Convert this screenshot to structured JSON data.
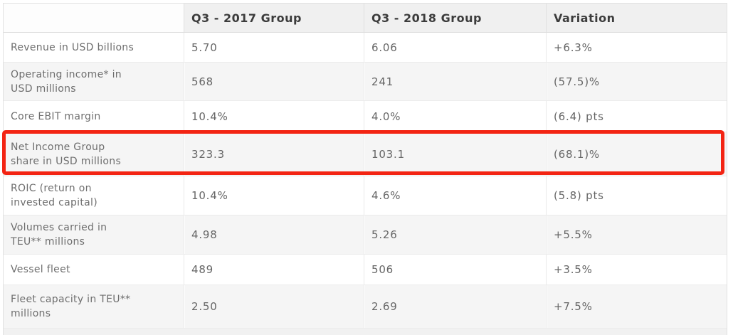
{
  "table": {
    "columns": [
      "",
      "Q3 - 2017 Group",
      "Q3 - 2018 Group",
      "Variation"
    ],
    "rows": [
      {
        "label": "Revenue in USD billions",
        "label_lines": [
          "Revenue in USD billions"
        ],
        "values": [
          "5.70",
          "6.06",
          "+6.3%"
        ]
      },
      {
        "label": "Operating income* in USD millions",
        "label_lines": [
          "Operating income* in",
          "USD millions"
        ],
        "values": [
          "568",
          "241",
          "(57.5)%"
        ]
      },
      {
        "label": "Core EBIT margin",
        "label_lines": [
          "Core EBIT margin"
        ],
        "values": [
          "10.4%",
          "4.0%",
          "(6.4) pts"
        ]
      },
      {
        "label": "Net Income Group share in USD millions",
        "label_lines": [
          "Net Income Group",
          "share in USD millions"
        ],
        "values": [
          "323.3",
          "103.1",
          "(68.1)%"
        ],
        "highlighted": true
      },
      {
        "label": "ROIC (return on invested capital)",
        "label_lines": [
          "ROIC (return on",
          "invested capital)"
        ],
        "values": [
          "10.4%",
          "4.6%",
          "(5.8) pts"
        ]
      },
      {
        "label": "Volumes carried in TEU** millions",
        "label_lines": [
          "Volumes carried in",
          "TEU** millions"
        ],
        "values": [
          "4.98",
          "5.26",
          "+5.5%"
        ]
      },
      {
        "label": "Vessel fleet",
        "label_lines": [
          "Vessel fleet"
        ],
        "values": [
          "489",
          "506",
          "+3.5%"
        ]
      },
      {
        "label": "Fleet capacity in TEU** millions",
        "label_lines": [
          "Fleet capacity in TEU**",
          "millions"
        ],
        "values": [
          "2.50",
          "2.69",
          "+7.5%"
        ]
      }
    ]
  },
  "highlight": {
    "target_row_label": "Net Income Group share in USD millions"
  },
  "colors": {
    "highlight_red": "#f32413",
    "header_bg": "#f0f0f0",
    "shaded_row_bg": "#f5f5f5",
    "header_text": "#3c3c3c",
    "body_text": "#6e6e6e",
    "border": "#e1e1e1"
  }
}
